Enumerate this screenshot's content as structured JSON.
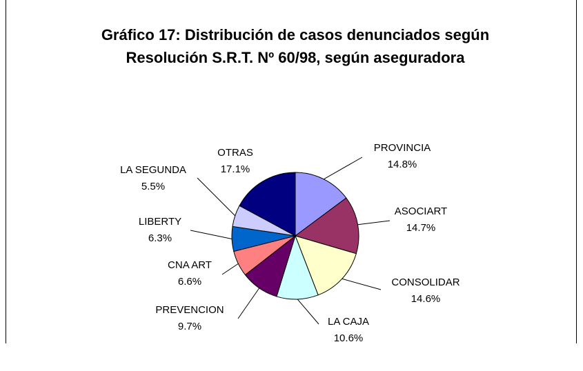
{
  "chart_data": {
    "type": "pie",
    "title": "Gráfico 17: Distribución de casos denunciados según Resolución S.R.T. Nº 60/98, según aseguradora",
    "categories": [
      "PROVINCIA",
      "ASOCIART",
      "CONSOLIDAR",
      "LA CAJA",
      "PREVENCION",
      "CNA ART",
      "LIBERTY",
      "LA SEGUNDA",
      "OTRAS"
    ],
    "values": [
      14.8,
      14.7,
      14.6,
      10.6,
      9.7,
      6.6,
      6.3,
      5.5,
      17.1
    ],
    "value_labels": [
      "14.8%",
      "14.7%",
      "14.6%",
      "10.6%",
      "9.7%",
      "6.6%",
      "6.3%",
      "5.5%",
      "17.1%"
    ],
    "colors": [
      "#9999ff",
      "#993366",
      "#ffffcc",
      "#ccffff",
      "#660066",
      "#ff8080",
      "#0066cc",
      "#ccccff",
      "#000080"
    ]
  }
}
